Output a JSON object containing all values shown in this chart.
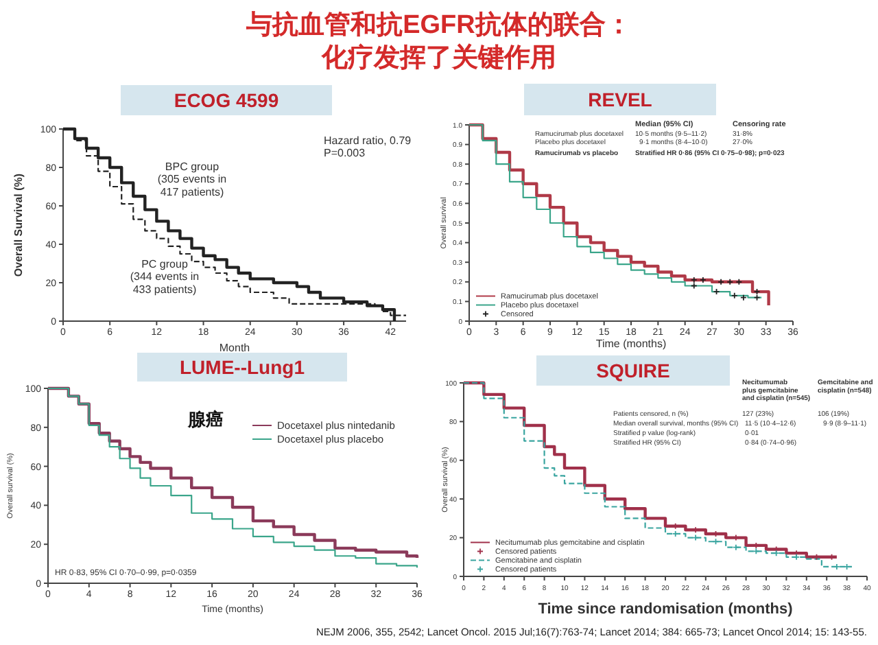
{
  "chart_data": [
    {
      "type": "step",
      "title": "ECOG 4599",
      "xlabel": "Month",
      "ylabel": "Overall Survival (%)",
      "xlim": [
        0,
        44
      ],
      "xticks": [
        0,
        6,
        12,
        18,
        24,
        30,
        36,
        42
      ],
      "ylim": [
        0,
        100
      ],
      "yticks": [
        0,
        20,
        40,
        60,
        80,
        100
      ],
      "legend": false,
      "annotations": [
        "与抗血管和抗EGFR抗体的联合：",
        "化疗发挥了关键作用",
        "Hazard ratio, 0.79\nP=0.003",
        "BPC group\n(305 events in\n417 patients)",
        "PC group\n(344 events in\n433 patients)"
      ],
      "series": [
        {
          "color": "#222222",
          "line_style": "solid",
          "x": [
            0,
            1.5,
            3,
            4.5,
            6,
            7.5,
            9,
            10.5,
            12,
            13.5,
            15,
            16.5,
            18,
            19.5,
            21,
            22.5,
            24,
            27,
            30,
            31.5,
            33,
            36,
            39,
            41,
            42.5
          ],
          "values": [
            100,
            95,
            90,
            85,
            80,
            72,
            65,
            58,
            52,
            47,
            43,
            38,
            34,
            32,
            28,
            25,
            22,
            20,
            18,
            15,
            12,
            10,
            8,
            6,
            0
          ]
        },
        {
          "color": "#222222",
          "line_style": "dashed",
          "x": [
            0,
            1.5,
            3,
            4.5,
            6,
            7.5,
            9,
            10.5,
            12,
            13.5,
            15,
            16.5,
            18,
            19.5,
            21,
            22.5,
            24,
            27,
            29,
            36,
            40,
            41,
            42,
            44
          ],
          "values": [
            100,
            94,
            86,
            78,
            70,
            61,
            53,
            47,
            43,
            39,
            35,
            31,
            28,
            25,
            21,
            18,
            15,
            12,
            9,
            9,
            8,
            5,
            3,
            3
          ]
        }
      ]
    },
    {
      "type": "step",
      "title": "REVEL",
      "xlabel": "Time (months)",
      "ylabel": "Overall survival",
      "xlim": [
        0,
        36
      ],
      "xticks": [
        0,
        3,
        6,
        9,
        12,
        15,
        18,
        21,
        24,
        27,
        30,
        33,
        36
      ],
      "ylim": [
        0,
        1
      ],
      "yticks": [
        0,
        0.1,
        0.2,
        0.3,
        0.4,
        0.5,
        0.6,
        0.7,
        0.8,
        0.9,
        {
          "value": 1,
          "label": "1.0"
        }
      ],
      "legend": "bottom left",
      "annotations": [
        "Median (95% CI)",
        "Censoring rate",
        "Ramucirumab plus docetaxel",
        "10·5 months (9·5–11·2)",
        "31·8%",
        "Placebo plus docetaxel",
        "9·1 months (8·4–10·0)",
        "27·0%",
        "Ramucirumab vs placebo",
        "Stratified HR 0·86 (95% CI 0·75–0·98); p=0·023"
      ],
      "series": [
        {
          "name": "Ramucirumab plus docetaxel",
          "color": "#b03a48",
          "x": [
            0,
            1.5,
            3,
            4.5,
            6,
            7.5,
            9,
            10.5,
            12,
            13.5,
            15,
            16.5,
            18,
            19.5,
            21,
            22.5,
            24,
            27,
            31.5,
            33,
            33.3
          ],
          "values": [
            1,
            0.93,
            0.86,
            0.77,
            0.7,
            0.64,
            0.58,
            0.5,
            0.43,
            0.4,
            0.36,
            0.33,
            0.3,
            0.28,
            0.25,
            0.23,
            0.21,
            0.2,
            0.15,
            0.15,
            0.08
          ]
        },
        {
          "name": "Placebo plus docetaxel",
          "color": "#3aa58a",
          "x": [
            0,
            1.5,
            3,
            4.5,
            6,
            7.5,
            9,
            10.5,
            12,
            13.5,
            15,
            16.5,
            18,
            19.5,
            21,
            22.5,
            24,
            27,
            29,
            31,
            32.5
          ],
          "values": [
            1,
            0.92,
            0.8,
            0.71,
            0.63,
            0.57,
            0.5,
            0.43,
            0.38,
            0.35,
            0.32,
            0.29,
            0.26,
            0.24,
            0.22,
            0.2,
            0.18,
            0.15,
            0.13,
            0.12,
            0.12
          ]
        },
        {
          "name": "Censored",
          "type": "scatter",
          "marker": "cross",
          "color": "#222222",
          "x": [
            25,
            26,
            28,
            29,
            30,
            32,
            25,
            27.5,
            29.5,
            30.5,
            32
          ],
          "values": [
            0.21,
            0.21,
            0.2,
            0.2,
            0.2,
            0.15,
            0.18,
            0.15,
            0.13,
            0.12,
            0.12
          ]
        }
      ]
    },
    {
      "type": "step",
      "title": "LUME--Lung1",
      "xlabel": "Time (months)",
      "ylabel": "Overall survival (%)",
      "xlim": [
        0,
        36
      ],
      "xticks": [
        0,
        4,
        8,
        12,
        16,
        20,
        24,
        28,
        32,
        36
      ],
      "ylim": [
        0,
        100
      ],
      "yticks": [
        0,
        20,
        40,
        60,
        80,
        100
      ],
      "legend": "top right",
      "annotations": [
        "腺癌",
        "HR 0·83, 95% CI 0·70–0·99, p=0·0359"
      ],
      "series": [
        {
          "name": "Docetaxel plus nintedanib",
          "color": "#8b3a5a",
          "x": [
            0,
            2,
            3,
            4,
            5,
            6,
            7,
            8,
            9,
            10,
            12,
            14,
            16,
            18,
            20,
            22,
            24,
            26,
            28,
            30,
            32,
            34,
            35,
            36
          ],
          "values": [
            100,
            96,
            92,
            82,
            77,
            73,
            69,
            65,
            62,
            59,
            54,
            49,
            44,
            39,
            32,
            29,
            25,
            22,
            18,
            17,
            16,
            16,
            14,
            13
          ]
        },
        {
          "name": "Docetaxel plus placebo",
          "color": "#3aa58a",
          "x": [
            0,
            2,
            3,
            4,
            5,
            6,
            7,
            8,
            9,
            10,
            12,
            14,
            16,
            18,
            20,
            22,
            24,
            26,
            28,
            30,
            32,
            34,
            36
          ],
          "values": [
            100,
            96,
            92,
            81,
            76,
            70,
            64,
            59,
            54,
            50,
            45,
            36,
            33,
            28,
            24,
            21,
            19,
            17,
            14,
            13,
            10,
            9,
            8
          ]
        }
      ]
    },
    {
      "type": "step",
      "title": "SQUIRE",
      "xlabel": "Time since randomisation (months)",
      "ylabel": "Overall survival (%)",
      "xlim": [
        0,
        40
      ],
      "xticks": [
        0,
        2,
        4,
        6,
        8,
        10,
        12,
        14,
        16,
        18,
        20,
        22,
        24,
        26,
        28,
        30,
        32,
        34,
        36,
        38,
        40
      ],
      "ylim": [
        0,
        100
      ],
      "yticks": [
        0,
        20,
        40,
        60,
        80,
        100
      ],
      "legend": "bottom left",
      "annotations": [
        "Necitumumab\nplus gemcitabine\nand cisplatin (n=545)",
        "Gemcitabine and\ncisplatin (n=548)",
        "Patients censored, n (%)",
        "Median overall survival, months (95% CI)",
        "Stratified p value (log-rank)",
        "Stratified HR (95% CI)",
        "127 (23%)",
        "11·5 (10·4–12·6)",
        "0·01",
        "0·84 (0·74–0·96)",
        "106 (19%)",
        "9·9 (8·9–11·1)",
        "NEJM 2006, 355, 2542; Lancet Oncol. 2015 Jul;16(7):763-74; Lancet 2014; 384: 665-73; Lancet Oncol 2014; 15: 143-55."
      ],
      "series": [
        {
          "name": "Necitumumab plus gemcitabine and cisplatin",
          "color": "#a0304a",
          "x": [
            0,
            2,
            4,
            6,
            8,
            9,
            10,
            12,
            14,
            16,
            18,
            20,
            22,
            24,
            26,
            28,
            30,
            32,
            34,
            37
          ],
          "values": [
            100,
            94,
            87,
            78,
            67,
            63,
            56,
            47,
            40,
            35,
            30,
            26,
            24,
            22,
            20,
            16,
            14,
            12,
            10,
            10
          ]
        },
        {
          "name": "Censored patients",
          "type": "scatter",
          "marker": "cross",
          "color": "#a0304a",
          "x": [
            21,
            23,
            25,
            27,
            29,
            31,
            33,
            35,
            36.5
          ],
          "values": [
            26,
            24,
            22,
            20,
            16,
            14,
            12,
            10,
            10
          ]
        },
        {
          "name": "Gemcitabine and cisplatin",
          "color": "#3aa5a0",
          "line_style": "dashed",
          "x": [
            0,
            2,
            4,
            6,
            8,
            9,
            10,
            12,
            14,
            16,
            18,
            20,
            22,
            24,
            26,
            28,
            30,
            32,
            34,
            35.5,
            38.5
          ],
          "values": [
            100,
            92,
            82,
            70,
            56,
            52,
            48,
            43,
            36,
            30,
            25,
            22,
            20,
            18,
            15,
            13,
            12,
            10,
            9,
            5,
            5
          ]
        },
        {
          "name": "Censored patients",
          "type": "scatter",
          "marker": "cross",
          "color": "#3aa5a0",
          "x": [
            21,
            23,
            25,
            27,
            29,
            31,
            33,
            37,
            38
          ],
          "values": [
            22,
            20,
            18,
            15,
            13,
            12,
            10,
            5,
            5
          ]
        }
      ]
    }
  ]
}
